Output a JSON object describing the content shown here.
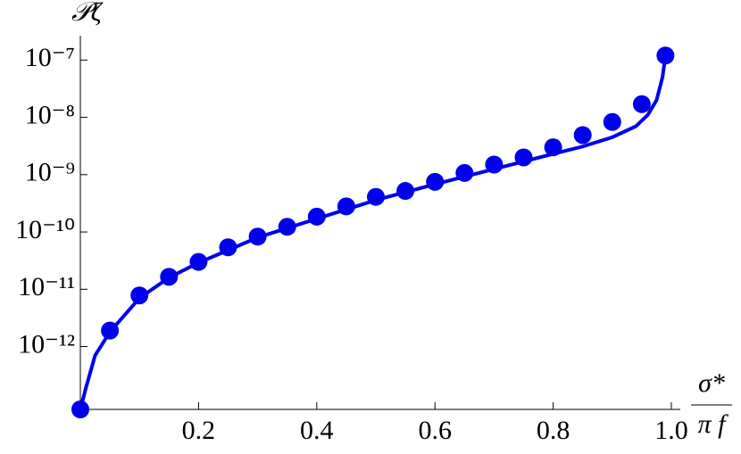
{
  "chart_data": {
    "type": "line",
    "ylabel": "𝒫ζ",
    "xlabel_numerator": "σ*",
    "xlabel_denominator": "π f",
    "log_y": true,
    "xlim": [
      0,
      1
    ],
    "ylim": [
      8e-14,
      2e-07
    ],
    "xticks": [
      0.2,
      0.4,
      0.6,
      0.8,
      {
        "value": 1,
        "label": "1.0"
      }
    ],
    "yticks": [
      {
        "value": 1e-12,
        "label": "10⁻¹²"
      },
      {
        "value": 1e-11,
        "label": "10⁻¹¹"
      },
      {
        "value": 1e-10,
        "label": "10⁻¹⁰"
      },
      {
        "value": 1e-09,
        "label": "10⁻⁹"
      },
      {
        "value": 1e-08,
        "label": "10⁻⁸"
      },
      {
        "value": 1e-07,
        "label": "10⁻⁷"
      }
    ],
    "series": [
      {
        "style": "line",
        "color": "#0000ee",
        "x": [
          0,
          0.01,
          0.025,
          0.05,
          0.1,
          0.15,
          0.2,
          0.3,
          0.4,
          0.5,
          0.6,
          0.7,
          0.8,
          0.85,
          0.9,
          0.94,
          0.96,
          0.975,
          0.985,
          0.99
        ],
        "values": [
          8e-14,
          2e-13,
          7e-13,
          1.8e-12,
          7e-12,
          1.6e-11,
          2.9e-11,
          8e-11,
          1.7e-10,
          3.6e-10,
          6.8e-10,
          1.25e-09,
          2.3e-09,
          3.1e-09,
          4.5e-09,
          7e-09,
          1.1e-08,
          2e-08,
          5e-08,
          1.2e-07
        ]
      },
      {
        "style": "markers",
        "color": "#0000ee",
        "x": [
          0,
          0.05,
          0.1,
          0.15,
          0.2,
          0.25,
          0.3,
          0.35,
          0.4,
          0.45,
          0.5,
          0.55,
          0.6,
          0.65,
          0.7,
          0.75,
          0.8,
          0.85,
          0.9,
          0.95,
          0.99
        ],
        "values": [
          8e-14,
          1.9e-12,
          7.8e-12,
          1.65e-11,
          3e-11,
          5.4e-11,
          8.3e-11,
          1.23e-10,
          1.85e-10,
          2.8e-10,
          4.1e-10,
          5.2e-10,
          7.5e-10,
          1.07e-09,
          1.5e-09,
          2e-09,
          3e-09,
          4.9e-09,
          8.3e-09,
          1.7e-08,
          1.2e-07
        ]
      }
    ]
  }
}
